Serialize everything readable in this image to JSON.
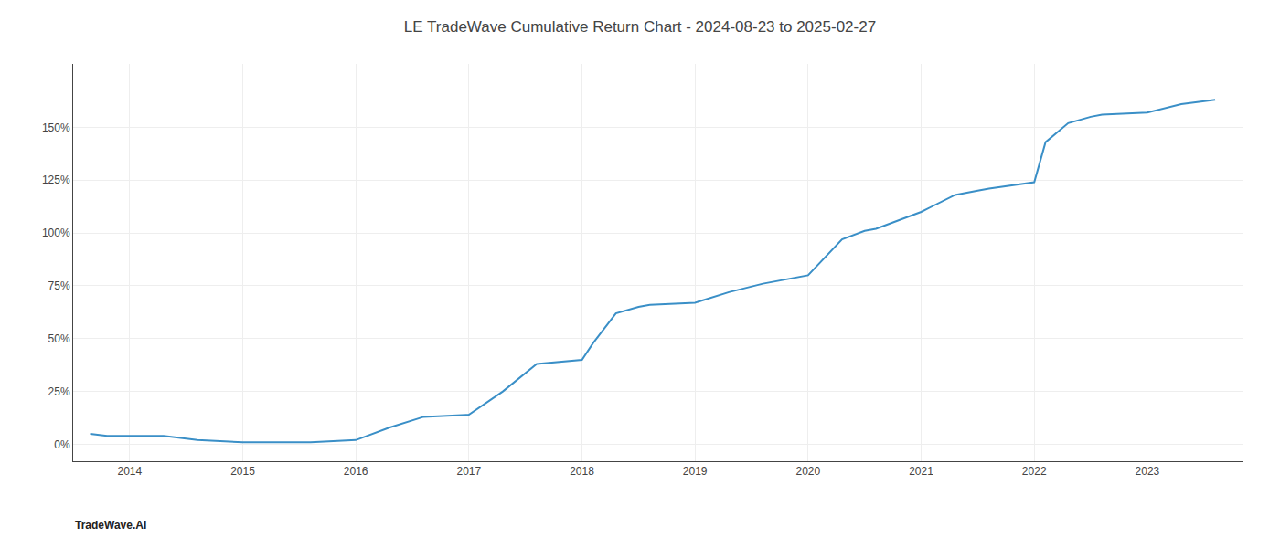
{
  "chart_data": {
    "type": "line",
    "title": "LE TradeWave Cumulative Return Chart - 2024-08-23 to 2025-02-27",
    "annotations": [
      "TradeWave.AI"
    ],
    "x": [
      2013.65,
      2013.8,
      2014.0,
      2014.3,
      2014.6,
      2015.0,
      2015.3,
      2015.6,
      2016.0,
      2016.3,
      2016.6,
      2017.0,
      2017.3,
      2017.6,
      2018.0,
      2018.1,
      2018.3,
      2018.5,
      2018.6,
      2019.0,
      2019.3,
      2019.6,
      2020.0,
      2020.3,
      2020.5,
      2020.6,
      2021.0,
      2021.3,
      2021.5,
      2021.6,
      2022.0,
      2022.1,
      2022.3,
      2022.5,
      2022.6,
      2023.0,
      2023.3,
      2023.6
    ],
    "values": [
      5,
      4,
      4,
      4,
      2,
      1,
      1,
      1,
      2,
      8,
      13,
      14,
      25,
      38,
      40,
      48,
      62,
      65,
      66,
      67,
      72,
      76,
      80,
      97,
      101,
      102,
      110,
      118,
      120,
      121,
      124,
      143,
      152,
      155,
      156,
      157,
      161,
      163
    ],
    "color": "#3a8fc7",
    "xlim": [
      2013.5,
      2023.85
    ],
    "xticks": [
      2014,
      2015,
      2016,
      2017,
      2018,
      2019,
      2020,
      2021,
      2022,
      2023
    ],
    "ylim": [
      -8,
      180
    ],
    "yticks": [
      {
        "value": 0,
        "label": "0%"
      },
      {
        "value": 25,
        "label": "25%"
      },
      {
        "value": 50,
        "label": "50%"
      },
      {
        "value": 75,
        "label": "75%"
      },
      {
        "value": 100,
        "label": "100%"
      },
      {
        "value": 125,
        "label": "125%"
      },
      {
        "value": 150,
        "label": "150%"
      }
    ],
    "grid": true
  }
}
